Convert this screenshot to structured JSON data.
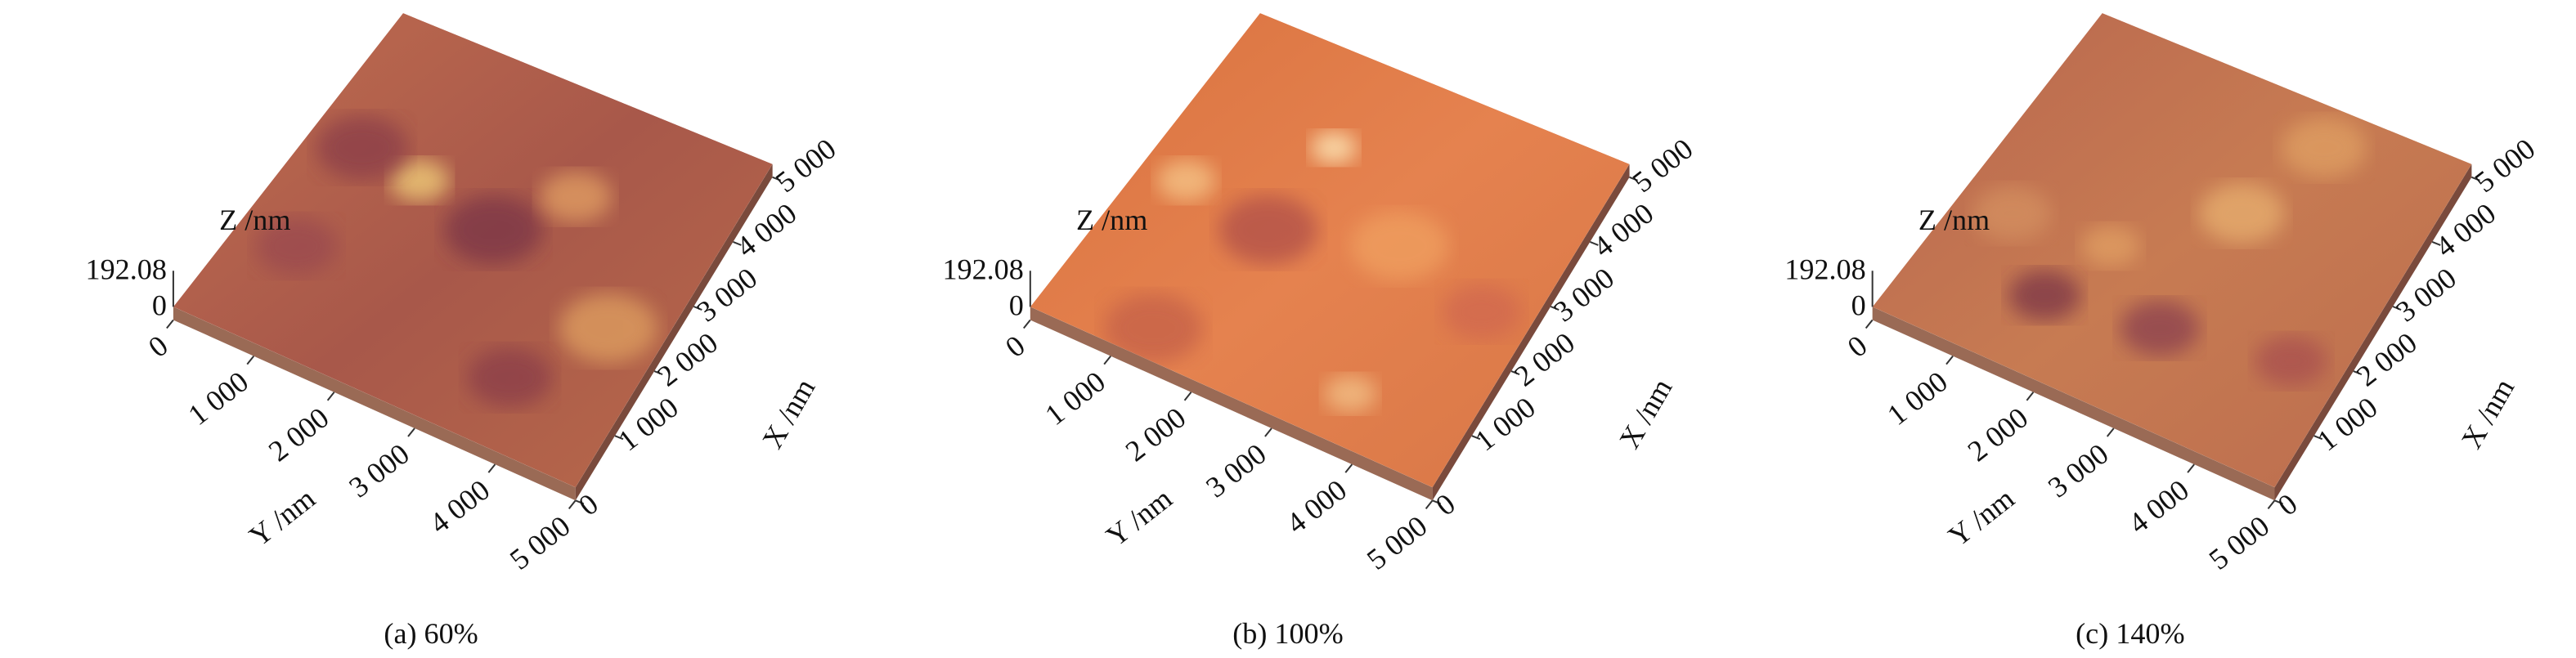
{
  "panels": [
    {
      "z_axis_label": "Z /nm",
      "z_max": "192.08",
      "z_min": "0",
      "y_axis_label": "Y /nm",
      "y_ticks": [
        "0",
        "1 000",
        "2 000",
        "3 000",
        "4 000",
        "5 000"
      ],
      "x_axis_label": "X /nm",
      "x_ticks": [
        "0",
        "1 000",
        "2 000",
        "3 000",
        "4 000",
        "5 000"
      ],
      "caption": "(a) 60%"
    },
    {
      "z_axis_label": "Z /nm",
      "z_max": "192.08",
      "z_min": "0",
      "y_axis_label": "Y /nm",
      "y_ticks": [
        "0",
        "1 000",
        "2 000",
        "3 000",
        "4 000",
        "5 000"
      ],
      "x_axis_label": "X /nm",
      "x_ticks": [
        "0",
        "1 000",
        "2 000",
        "3 000",
        "4 000",
        "5 000"
      ],
      "caption": "(b) 100%"
    },
    {
      "z_axis_label": "Z /nm",
      "z_max": "192.08",
      "z_min": "0",
      "y_axis_label": "Y /nm",
      "y_ticks": [
        "0",
        "1 000",
        "2 000",
        "3 000",
        "4 000",
        "5 000"
      ],
      "x_axis_label": "X /nm",
      "x_ticks": [
        "0",
        "1 000",
        "2 000",
        "3 000",
        "4 000",
        "5 000"
      ],
      "caption": "(c) 140%"
    }
  ]
}
